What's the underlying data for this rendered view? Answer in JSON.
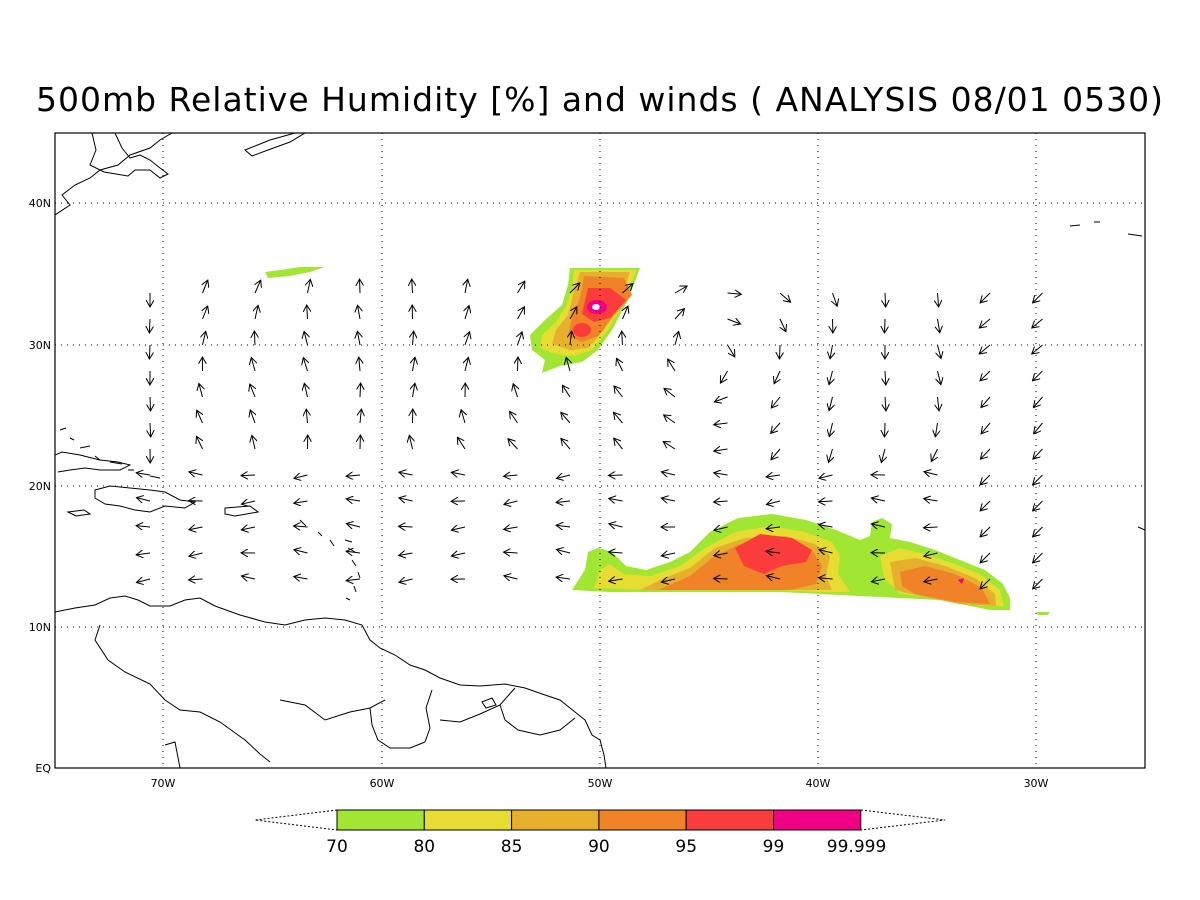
{
  "title": "500mb Relative Humidity [%] and winds ( ANALYSIS 08/01 0530)",
  "map": {
    "lat_labels": [
      "40N",
      "30N",
      "20N",
      "10N",
      "EQ"
    ],
    "lon_labels": [
      "70W",
      "60W",
      "50W",
      "40W",
      "30W"
    ]
  },
  "colorbar": {
    "levels": [
      "70",
      "80",
      "85",
      "90",
      "95",
      "99",
      "99.999"
    ],
    "colors": [
      "#a0e632",
      "#e6dc32",
      "#e6af2d",
      "#f08228",
      "#fa3c3c",
      "#f00082"
    ]
  },
  "rh_colors": {
    "c70": "#a0e632",
    "c80": "#e6dc32",
    "c85": "#e6af2d",
    "c90": "#f08228",
    "c95": "#fa3c3c",
    "c99": "#f00082"
  }
}
